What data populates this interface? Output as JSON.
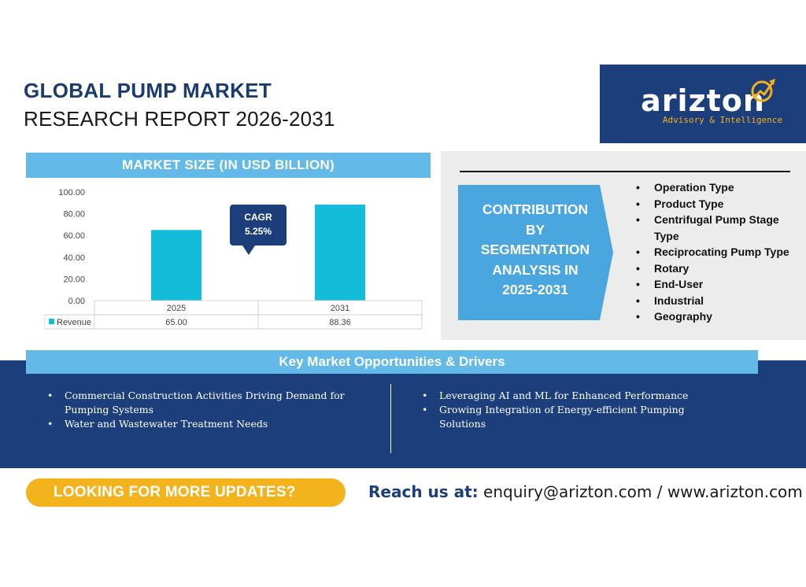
{
  "header": {
    "title_line1": "GLOBAL PUMP MARKET",
    "title_line2": "RESEARCH REPORT 2026-2031"
  },
  "logo": {
    "wordmark": "arizton",
    "tagline": "Advisory & Intelligence"
  },
  "market_size": {
    "header": "MARKET SIZE (IN USD BILLION)",
    "cagr_label": "CAGR",
    "cagr_value": "5.25%"
  },
  "chart_data": {
    "type": "bar",
    "categories": [
      "2025",
      "2031"
    ],
    "series": [
      {
        "name": "Revenue",
        "values": [
          65.0,
          88.36
        ]
      }
    ],
    "value_labels": [
      "65.00",
      "88.36"
    ],
    "title": "",
    "xlabel": "",
    "ylabel": "",
    "ylim": [
      0,
      100
    ],
    "yticks": [
      "100.00",
      "80.00",
      "60.00",
      "40.00",
      "20.00",
      "0.00"
    ],
    "grid": false,
    "data_table": true,
    "color": "#13bcd8"
  },
  "segmentation": {
    "box_text": [
      "CONTRIBUTION",
      "BY",
      "SEGMENTATION",
      "ANALYSIS IN",
      "2025-2031"
    ],
    "items": [
      "Operation Type",
      "Product Type",
      "Centrifugal Pump Stage Type",
      "Reciprocating Pump Type",
      "Rotary",
      "End-User",
      "Industrial",
      "Geography"
    ]
  },
  "drivers": {
    "header": "Key Market Opportunities & Drivers",
    "left": [
      "Commercial Construction Activities Driving Demand for Pumping Systems",
      "Water and Wastewater Treatment Needs"
    ],
    "right": [
      "Leveraging AI and ML for Enhanced Performance",
      "Growing Integration of Energy-efficient Pumping Solutions"
    ]
  },
  "footer": {
    "cta": "LOOKING FOR MORE UPDATES?",
    "reach_label": "Reach us at:",
    "reach_contact": "enquiry@arizton.com / www.arizton.com"
  },
  "colors": {
    "navy": "#1c3f7c",
    "sky": "#63b9e8",
    "gold": "#f2b31c",
    "bar": "#13bcd8"
  }
}
